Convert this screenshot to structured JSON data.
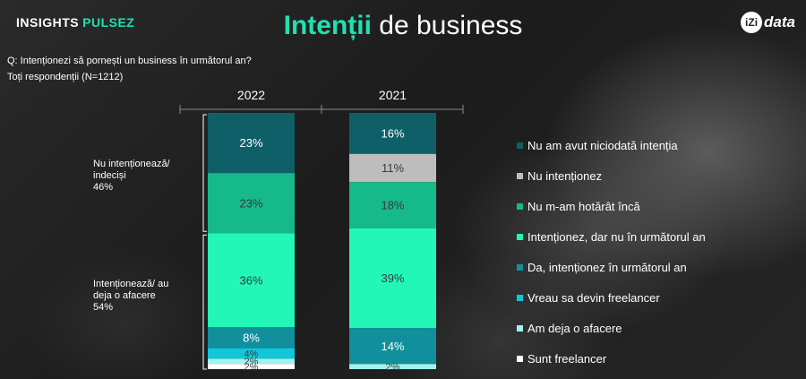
{
  "header": {
    "brand_main": "INSIGHTS",
    "brand_accent": "PULSEZ",
    "title_highlight": "Intenții",
    "title_rest": "de business",
    "logo_mark": "iZi",
    "logo_text": "data"
  },
  "question": "Q: Intenționezi să pornești un business în următorul an?",
  "respondents": "Toți respondenții (N=1212)",
  "groups": [
    {
      "lines": [
        "Nu intenționează/",
        "indeciși",
        "46%"
      ]
    },
    {
      "lines": [
        "Intenționează/ au",
        "deja o afacere",
        "54%"
      ]
    }
  ],
  "chart_data": {
    "type": "bar",
    "stacked": true,
    "categories": [
      "2022",
      "2021"
    ],
    "series": [
      {
        "name": "Nu am avut niciodată intenția",
        "color": "#0f5f68",
        "values": [
          23,
          16
        ],
        "labels": [
          "23%",
          "16%"
        ]
      },
      {
        "name": "Nu intenționez",
        "color": "#bdbdbd",
        "values": [
          0,
          11
        ],
        "labels": [
          "",
          "11%"
        ]
      },
      {
        "name": "Nu m-am hotărât încă",
        "color": "#15b98a",
        "values": [
          23,
          18
        ],
        "labels": [
          "23%",
          "18%"
        ]
      },
      {
        "name": "Intenționez, dar nu în următorul an",
        "color": "#22f7b8",
        "values": [
          36,
          39
        ],
        "labels": [
          "36%",
          "39%"
        ]
      },
      {
        "name": "Da, intenționez în următorul an",
        "color": "#118f9c",
        "values": [
          8,
          14
        ],
        "labels": [
          "8%",
          "14%"
        ]
      },
      {
        "name": "Vreau sa devin freelancer",
        "color": "#10c7da",
        "values": [
          4,
          0
        ],
        "labels": [
          "4%",
          ""
        ]
      },
      {
        "name": "Am deja o afacere",
        "color": "#9ef3ee",
        "values": [
          2,
          2
        ],
        "labels": [
          "2%",
          "2%"
        ]
      },
      {
        "name": "Sunt freelancer",
        "color": "#ffffff",
        "values": [
          2,
          0
        ],
        "labels": [
          "2%",
          ""
        ]
      }
    ],
    "legend_position": "right"
  }
}
